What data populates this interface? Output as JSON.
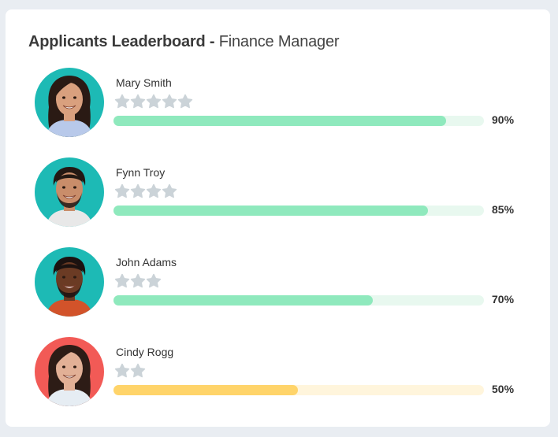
{
  "header": {
    "title_bold": "Applicants Leaderboard -",
    "title_light": "Finance Manager"
  },
  "colors": {
    "page_bg": "#e9edf2",
    "card_bg": "#ffffff",
    "star": "#cbd3d8",
    "green_fill": "#8fe9bd",
    "green_track": "#e8f8ef",
    "yellow_fill": "#ffd46a",
    "yellow_track": "#fff5dc",
    "teal_avatar_bg": "#1dbab5",
    "red_avatar_bg": "#f25a56"
  },
  "applicants": [
    {
      "name": "Mary Smith",
      "stars": 5,
      "score": 90,
      "score_label": "90%",
      "bar": "green",
      "avatar_bg": "teal",
      "avatar_icon": "woman-avatar-icon"
    },
    {
      "name": "Fynn Troy",
      "stars": 4,
      "score": 85,
      "score_label": "85%",
      "bar": "green",
      "avatar_bg": "teal",
      "avatar_icon": "man-avatar-icon"
    },
    {
      "name": "John Adams",
      "stars": 3,
      "score": 70,
      "score_label": "70%",
      "bar": "green",
      "avatar_bg": "teal",
      "avatar_icon": "man-avatar-icon"
    },
    {
      "name": "Cindy Rogg",
      "stars": 2,
      "score": 50,
      "score_label": "50%",
      "bar": "yellow",
      "avatar_bg": "red",
      "avatar_icon": "woman-avatar-icon"
    }
  ]
}
